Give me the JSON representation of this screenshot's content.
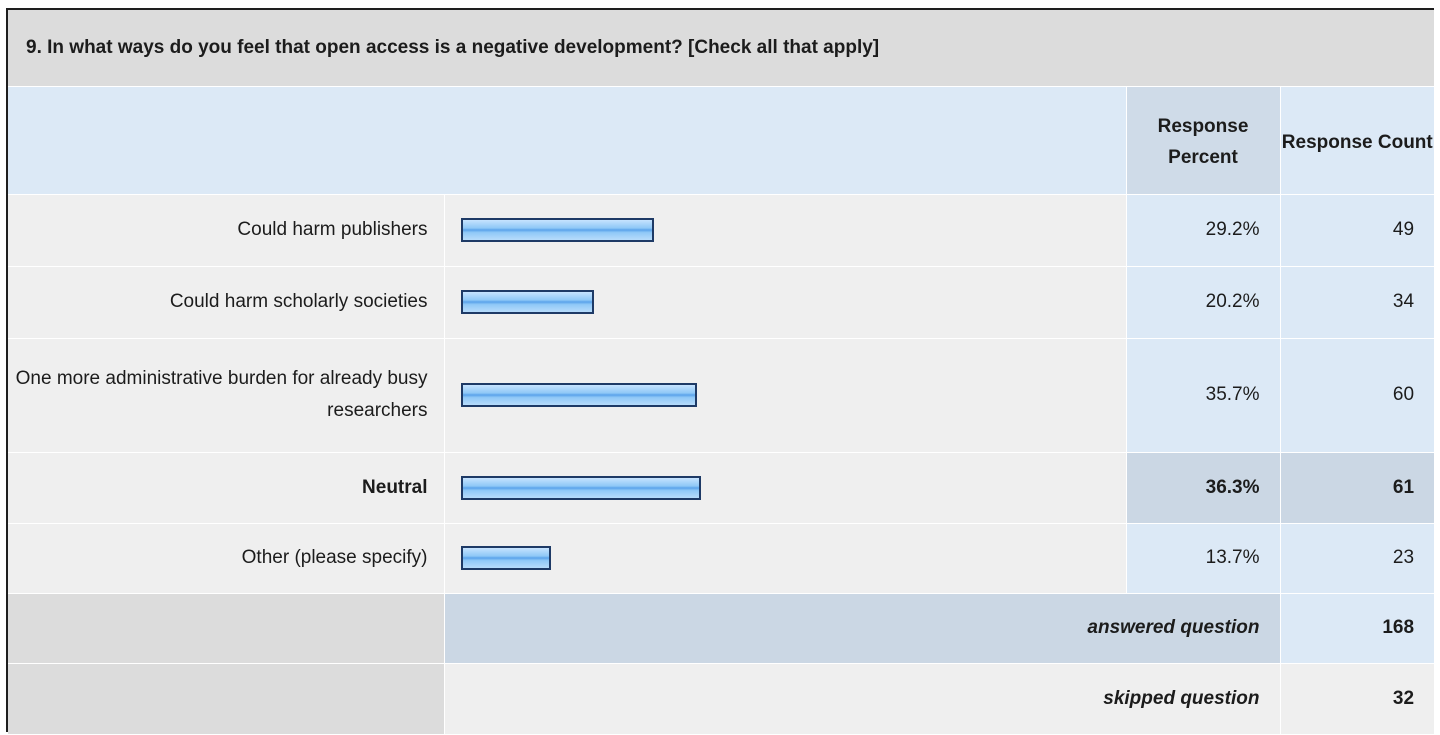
{
  "question": {
    "title": "9. In what ways do you feel that open access is a negative development? [Check all that apply]"
  },
  "headers": {
    "percent": "Response Percent",
    "count": "Response Count"
  },
  "rows": [
    {
      "label": "Could harm publishers",
      "percent": "29.2%",
      "count": "49"
    },
    {
      "label": "Could harm scholarly societies",
      "percent": "20.2%",
      "count": "34"
    },
    {
      "label": "One more administrative burden for already busy researchers",
      "percent": "35.7%",
      "count": "60"
    },
    {
      "label": "Neutral",
      "percent": "36.3%",
      "count": "61"
    },
    {
      "label": "Other (please specify)",
      "percent": "13.7%",
      "count": "23"
    }
  ],
  "summary": {
    "answered_label": "answered question",
    "answered_value": "168",
    "skipped_label": "skipped question",
    "skipped_value": "32"
  },
  "chart_data": {
    "type": "bar",
    "orientation": "horizontal",
    "categories": [
      "Could harm publishers",
      "Could harm scholarly societies",
      "One more administrative burden for already busy researchers",
      "Neutral",
      "Other (please specify)"
    ],
    "values": [
      29.2,
      20.2,
      35.7,
      36.3,
      13.7
    ],
    "counts": [
      49,
      34,
      60,
      61,
      23
    ],
    "highlighted": "Neutral",
    "unit": "%",
    "colors": {
      "bar_fill": "#8fc8f7",
      "bar_border": "#1e3a66"
    }
  }
}
